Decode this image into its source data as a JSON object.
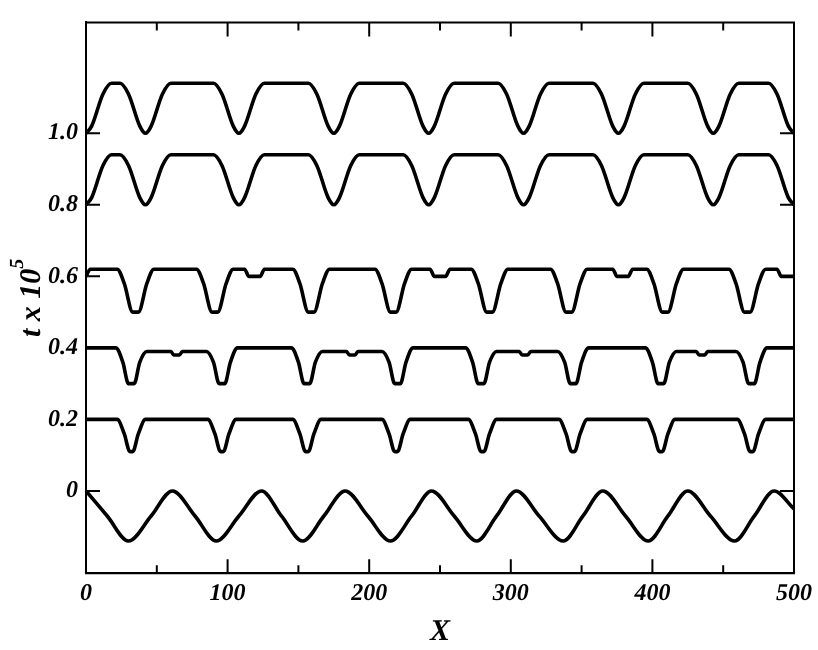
{
  "chart_data": {
    "type": "line",
    "xlabel": "X",
    "ylabel": "t x 10$^{5}$",
    "xlim": [
      0,
      500
    ],
    "ylim": [
      -0.23,
      1.31
    ],
    "xticks": [
      0,
      {
        "value": 50,
        "label": null
      },
      100,
      {
        "value": 150,
        "label": null
      },
      200,
      {
        "value": 250,
        "label": null
      },
      300,
      {
        "value": 350,
        "label": null
      },
      400,
      {
        "value": 450,
        "label": null
      },
      500
    ],
    "yticks": [
      0,
      0.2,
      0.4,
      0.6,
      0.8,
      {
        "value": 1,
        "label": "1.0"
      }
    ],
    "marker": "none",
    "line_style": "solid",
    "legend": false,
    "series": [
      {
        "color": "#000000",
        "x": [
          0,
          15,
          30,
          46,
          61,
          77,
          92,
          108,
          124,
          138,
          153,
          168,
          183,
          199,
          215,
          230,
          244,
          260,
          276,
          290,
          304,
          320,
          337,
          351,
          365,
          381,
          397,
          411,
          425,
          441,
          458,
          472,
          486,
          500
        ],
        "values": [
          0,
          -0.07,
          -0.14,
          -0.07,
          0,
          -0.07,
          -0.14,
          -0.07,
          0,
          -0.07,
          -0.14,
          -0.07,
          0,
          -0.07,
          -0.14,
          -0.07,
          0,
          -0.07,
          -0.14,
          -0.07,
          0,
          -0.07,
          -0.14,
          -0.07,
          0,
          -0.07,
          -0.14,
          -0.07,
          0,
          -0.07,
          -0.14,
          -0.07,
          0,
          -0.05
        ]
      },
      {
        "color": "#000000",
        "x": [
          0,
          22,
          27,
          31,
          33,
          37,
          42,
          86,
          91,
          95,
          97,
          101,
          106,
          146,
          151,
          155,
          157,
          161,
          166,
          209,
          214,
          218,
          220,
          224,
          229,
          270,
          275,
          279,
          281,
          285,
          290,
          334,
          339,
          343,
          345,
          349,
          354,
          396,
          401,
          405,
          407,
          411,
          416,
          460,
          465,
          469,
          471,
          475,
          480,
          500
        ],
        "values": [
          0.2,
          0.2,
          0.16,
          0.11,
          0.11,
          0.16,
          0.2,
          0.2,
          0.16,
          0.11,
          0.11,
          0.16,
          0.2,
          0.2,
          0.16,
          0.11,
          0.11,
          0.16,
          0.2,
          0.2,
          0.16,
          0.11,
          0.11,
          0.16,
          0.2,
          0.2,
          0.16,
          0.11,
          0.11,
          0.16,
          0.2,
          0.2,
          0.16,
          0.11,
          0.11,
          0.16,
          0.2,
          0.2,
          0.16,
          0.11,
          0.11,
          0.16,
          0.2,
          0.2,
          0.16,
          0.11,
          0.11,
          0.16,
          0.2,
          0.2
        ]
      },
      {
        "color": "#000000",
        "x": [
          0,
          21,
          26,
          30,
          34,
          38,
          43,
          60,
          62,
          66,
          68,
          85,
          90,
          94,
          98,
          102,
          107,
          145,
          150,
          154,
          158,
          162,
          167,
          184,
          186,
          190,
          192,
          209,
          214,
          218,
          222,
          226,
          231,
          268,
          273,
          277,
          281,
          285,
          290,
          306,
          308,
          312,
          314,
          333,
          338,
          342,
          346,
          350,
          355,
          395,
          400,
          404,
          408,
          412,
          417,
          431,
          433,
          437,
          439,
          459,
          464,
          468,
          472,
          476,
          481,
          500
        ],
        "values": [
          0.4,
          0.4,
          0.36,
          0.3,
          0.3,
          0.36,
          0.39,
          0.39,
          0.38,
          0.38,
          0.39,
          0.39,
          0.36,
          0.3,
          0.3,
          0.36,
          0.4,
          0.4,
          0.36,
          0.3,
          0.3,
          0.36,
          0.39,
          0.39,
          0.38,
          0.38,
          0.39,
          0.39,
          0.36,
          0.3,
          0.3,
          0.36,
          0.4,
          0.4,
          0.36,
          0.3,
          0.3,
          0.36,
          0.39,
          0.39,
          0.38,
          0.38,
          0.39,
          0.39,
          0.36,
          0.3,
          0.3,
          0.36,
          0.4,
          0.4,
          0.36,
          0.3,
          0.3,
          0.36,
          0.39,
          0.39,
          0.38,
          0.38,
          0.39,
          0.39,
          0.36,
          0.3,
          0.3,
          0.36,
          0.4,
          0.4
        ]
      },
      {
        "color": "#000000",
        "x": [
          0,
          3,
          22,
          27,
          33,
          37,
          43,
          48,
          78,
          83,
          89,
          93,
          99,
          104,
          112,
          115,
          123,
          126,
          146,
          151,
          157,
          161,
          167,
          172,
          204,
          209,
          215,
          219,
          225,
          230,
          243,
          246,
          254,
          257,
          272,
          277,
          283,
          287,
          293,
          298,
          328,
          333,
          339,
          343,
          349,
          354,
          372,
          375,
          383,
          386,
          396,
          401,
          407,
          411,
          417,
          422,
          454,
          459,
          465,
          469,
          475,
          480,
          488,
          491,
          500
        ],
        "values": [
          0.6,
          0.62,
          0.62,
          0.58,
          0.5,
          0.5,
          0.58,
          0.62,
          0.62,
          0.58,
          0.5,
          0.5,
          0.58,
          0.62,
          0.62,
          0.6,
          0.6,
          0.62,
          0.62,
          0.58,
          0.5,
          0.5,
          0.58,
          0.62,
          0.62,
          0.58,
          0.5,
          0.5,
          0.58,
          0.62,
          0.62,
          0.6,
          0.6,
          0.62,
          0.62,
          0.58,
          0.5,
          0.5,
          0.58,
          0.62,
          0.62,
          0.58,
          0.5,
          0.5,
          0.58,
          0.62,
          0.62,
          0.6,
          0.6,
          0.62,
          0.62,
          0.58,
          0.5,
          0.5,
          0.58,
          0.62,
          0.62,
          0.58,
          0.5,
          0.5,
          0.58,
          0.62,
          0.62,
          0.6,
          0.6
        ]
      },
      {
        "color": "#000000",
        "x": [
          0,
          4,
          12,
          18,
          24,
          30,
          38,
          42,
          46,
          54,
          60,
          90,
          96,
          104,
          108,
          112,
          120,
          126,
          157,
          163,
          171,
          175,
          179,
          187,
          193,
          224,
          230,
          238,
          242,
          246,
          254,
          260,
          291,
          297,
          305,
          309,
          313,
          321,
          327,
          358,
          364,
          372,
          376,
          380,
          388,
          394,
          425,
          431,
          439,
          443,
          447,
          455,
          461,
          482,
          488,
          496,
          500
        ],
        "values": [
          0.8,
          0.82,
          0.91,
          0.94,
          0.94,
          0.91,
          0.82,
          0.8,
          0.82,
          0.91,
          0.94,
          0.94,
          0.91,
          0.82,
          0.8,
          0.82,
          0.91,
          0.94,
          0.94,
          0.91,
          0.82,
          0.8,
          0.82,
          0.91,
          0.94,
          0.94,
          0.91,
          0.82,
          0.8,
          0.82,
          0.91,
          0.94,
          0.94,
          0.91,
          0.82,
          0.8,
          0.82,
          0.91,
          0.94,
          0.94,
          0.91,
          0.82,
          0.8,
          0.82,
          0.91,
          0.94,
          0.94,
          0.91,
          0.82,
          0.8,
          0.82,
          0.91,
          0.94,
          0.94,
          0.91,
          0.82,
          0.8
        ]
      },
      {
        "color": "#000000",
        "x": [
          0,
          4,
          12,
          18,
          24,
          30,
          38,
          42,
          46,
          54,
          60,
          90,
          96,
          104,
          108,
          112,
          120,
          126,
          157,
          163,
          171,
          175,
          179,
          187,
          193,
          224,
          230,
          238,
          242,
          246,
          254,
          260,
          291,
          297,
          305,
          309,
          313,
          321,
          327,
          358,
          364,
          372,
          376,
          380,
          388,
          394,
          425,
          431,
          439,
          443,
          447,
          455,
          461,
          482,
          488,
          496,
          500
        ],
        "values": [
          1.0,
          1.02,
          1.11,
          1.14,
          1.14,
          1.11,
          1.02,
          1.0,
          1.02,
          1.11,
          1.14,
          1.14,
          1.11,
          1.02,
          1.0,
          1.02,
          1.11,
          1.14,
          1.14,
          1.11,
          1.02,
          1.0,
          1.02,
          1.11,
          1.14,
          1.14,
          1.11,
          1.02,
          1.0,
          1.02,
          1.11,
          1.14,
          1.14,
          1.11,
          1.02,
          1.0,
          1.02,
          1.11,
          1.14,
          1.14,
          1.11,
          1.02,
          1.0,
          1.02,
          1.11,
          1.14,
          1.14,
          1.11,
          1.02,
          1.0,
          1.02,
          1.11,
          1.14,
          1.14,
          1.11,
          1.02,
          1.0
        ]
      }
    ]
  }
}
